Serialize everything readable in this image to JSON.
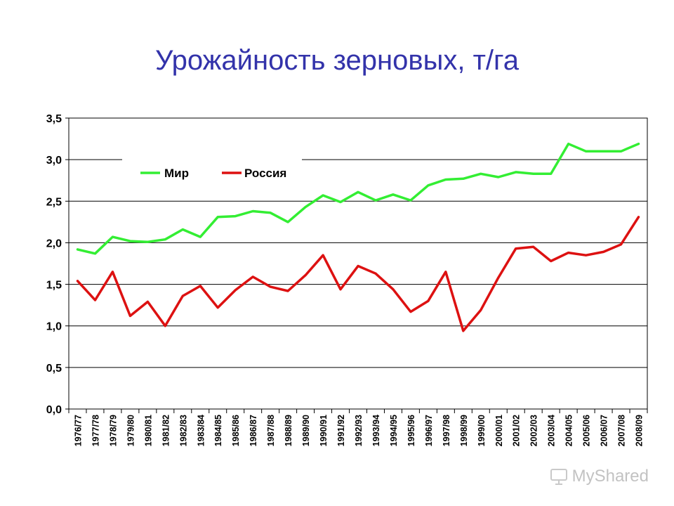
{
  "title": "Урожайность зерновых, т/га",
  "watermark": "MyShared",
  "chart_data": {
    "type": "line",
    "title": "Урожайность зерновых, т/га",
    "ylim": [
      0,
      3.5
    ],
    "yticks": [
      "0,0",
      "0,5",
      "1,0",
      "1,5",
      "2,0",
      "2,5",
      "3,0",
      "3,5"
    ],
    "grid": true,
    "legend_position": "top-left",
    "categories": [
      "1976/77",
      "1977/78",
      "1978/79",
      "1979/80",
      "1980/81",
      "1981/82",
      "1982/83",
      "1983/84",
      "1984/85",
      "1985/86",
      "1986/87",
      "1987/88",
      "1988/89",
      "1989/90",
      "1990/91",
      "1991/92",
      "1992/93",
      "1993/94",
      "1994/95",
      "1995/96",
      "1996/97",
      "1997/98",
      "1998/99",
      "1999/00",
      "2000/01",
      "2001/02",
      "2002/03",
      "2003/04",
      "2004/05",
      "2005/06",
      "2006/07",
      "2007/08",
      "2008/09"
    ],
    "series": [
      {
        "name": "Мир",
        "color": "#33ee33",
        "values": [
          1.92,
          1.87,
          2.07,
          2.02,
          2.01,
          2.04,
          2.16,
          2.07,
          2.31,
          2.32,
          2.38,
          2.36,
          2.25,
          2.43,
          2.57,
          2.49,
          2.61,
          2.51,
          2.58,
          2.51,
          2.69,
          2.76,
          2.77,
          2.83,
          2.79,
          2.85,
          2.83,
          2.83,
          3.19,
          3.1,
          3.1,
          3.1,
          3.19
        ]
      },
      {
        "name": "Россия",
        "color": "#dd1111",
        "values": [
          1.54,
          1.31,
          1.65,
          1.12,
          1.29,
          1.0,
          1.36,
          1.48,
          1.22,
          1.43,
          1.59,
          1.47,
          1.42,
          1.61,
          1.85,
          1.44,
          1.72,
          1.63,
          1.44,
          1.17,
          1.3,
          1.65,
          0.94,
          1.19,
          1.58,
          1.93,
          1.95,
          1.78,
          1.88,
          1.85,
          1.89,
          1.98,
          2.31
        ]
      }
    ]
  }
}
